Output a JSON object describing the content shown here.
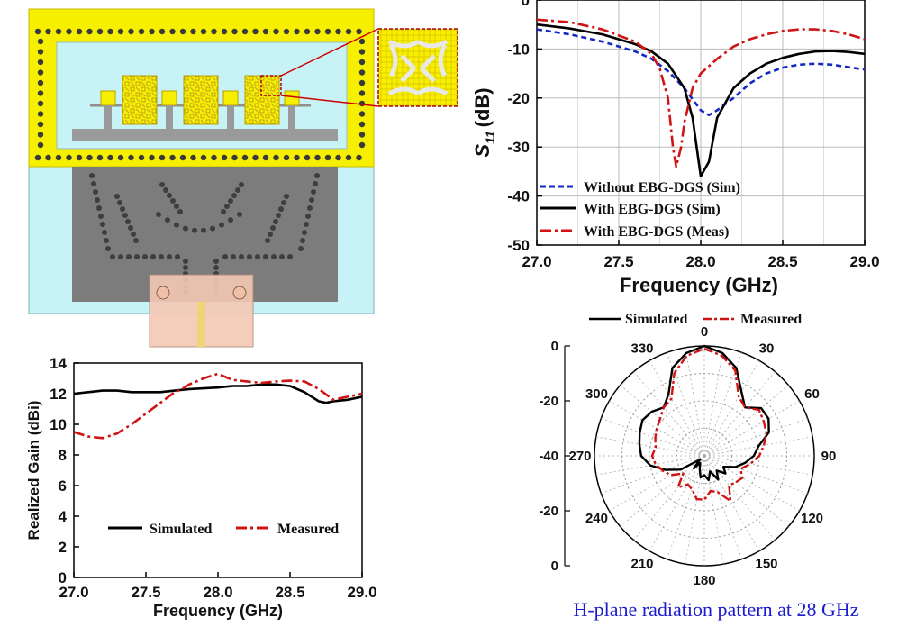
{
  "colors": {
    "sim_black": "#000000",
    "meas_red": "#d01414",
    "without_blue": "#1428c8",
    "board_cyan": "#c7f3f6",
    "ring_yellow": "#f6f000",
    "ground_gray": "#808080",
    "caption_blue": "#1a1ad0"
  },
  "antenna_diagram": {
    "description_icon": "antenna-layout-icon"
  },
  "chart_data": [
    {
      "id": "s11",
      "type": "line",
      "title": "",
      "xlabel": "Frequency (GHz)",
      "ylabel_main": "S",
      "ylabel_sub": "11",
      "ylabel_unit": "(dB)",
      "xlim": [
        27.0,
        29.0
      ],
      "ylim": [
        -50,
        0
      ],
      "xticks": [
        27.0,
        27.5,
        28.0,
        28.5,
        29.0
      ],
      "xtick_labels": [
        "27.0",
        "27.5",
        "28.0",
        "28.5",
        "29.0"
      ],
      "yticks": [
        0,
        -10,
        -20,
        -30,
        -40,
        -50
      ],
      "ytick_labels": [
        "0",
        "-10",
        "-20",
        "-30",
        "-40",
        "-50"
      ],
      "grid": true,
      "legend_position": "bottom-left",
      "series": [
        {
          "name": "Without EBG-DGS (Sim)",
          "style": "dashed",
          "color": "#1428c8",
          "x": [
            27.0,
            27.2,
            27.4,
            27.6,
            27.7,
            27.8,
            27.9,
            28.0,
            28.05,
            28.1,
            28.2,
            28.3,
            28.4,
            28.5,
            28.6,
            28.7,
            28.8,
            28.9,
            29.0
          ],
          "y": [
            -6,
            -7,
            -8.5,
            -10.5,
            -12,
            -14.5,
            -18,
            -22.5,
            -23.5,
            -22.5,
            -20,
            -17,
            -15,
            -13.8,
            -13.2,
            -13,
            -13.2,
            -13.7,
            -14.2
          ]
        },
        {
          "name": "With EBG-DGS (Sim)",
          "style": "solid",
          "color": "#000000",
          "x": [
            27.0,
            27.2,
            27.4,
            27.6,
            27.7,
            27.8,
            27.9,
            27.95,
            28.0,
            28.05,
            28.1,
            28.2,
            28.3,
            28.4,
            28.5,
            28.6,
            28.7,
            28.8,
            28.9,
            29.0
          ],
          "y": [
            -5,
            -5.8,
            -7,
            -9,
            -10.5,
            -13,
            -18,
            -24,
            -36,
            -33,
            -24,
            -18,
            -15,
            -13,
            -11.8,
            -11,
            -10.5,
            -10.4,
            -10.6,
            -11
          ]
        },
        {
          "name": "With EBG-DGS (Meas)",
          "style": "dashdot",
          "color": "#d01414",
          "x": [
            27.0,
            27.2,
            27.4,
            27.6,
            27.7,
            27.75,
            27.8,
            27.83,
            27.85,
            27.88,
            27.9,
            27.95,
            28.0,
            28.1,
            28.2,
            28.3,
            28.4,
            28.5,
            28.6,
            28.7,
            28.8,
            28.9,
            29.0
          ],
          "y": [
            -4,
            -4.5,
            -6,
            -8.5,
            -11,
            -14,
            -20,
            -30,
            -34,
            -30,
            -25,
            -18,
            -15,
            -12,
            -9.5,
            -8,
            -7,
            -6.3,
            -6,
            -6,
            -6.3,
            -7,
            -8
          ]
        }
      ]
    },
    {
      "id": "gain",
      "type": "line",
      "title": "",
      "xlabel": "Frequency (GHz)",
      "ylabel": "Realized Gain (dBi)",
      "xlim": [
        27.0,
        29.0
      ],
      "ylim": [
        0,
        14
      ],
      "xticks": [
        27.0,
        27.5,
        28.0,
        28.5,
        29.0
      ],
      "xtick_labels": [
        "27.0",
        "27.5",
        "28.0",
        "28.5",
        "29.0"
      ],
      "yticks": [
        0,
        2,
        4,
        6,
        8,
        10,
        12,
        14
      ],
      "ytick_labels": [
        "0",
        "2",
        "4",
        "6",
        "8",
        "10",
        "12",
        "14"
      ],
      "grid": false,
      "legend_position": "bottom-center",
      "series": [
        {
          "name": "Simulated",
          "style": "solid",
          "color": "#000000",
          "x": [
            27.0,
            27.1,
            27.2,
            27.3,
            27.4,
            27.5,
            27.6,
            27.7,
            27.8,
            27.9,
            28.0,
            28.1,
            28.2,
            28.3,
            28.4,
            28.5,
            28.6,
            28.7,
            28.75,
            28.8,
            28.9,
            29.0
          ],
          "y": [
            12.0,
            12.1,
            12.2,
            12.2,
            12.1,
            12.1,
            12.1,
            12.2,
            12.3,
            12.35,
            12.4,
            12.5,
            12.5,
            12.6,
            12.6,
            12.5,
            12.1,
            11.5,
            11.4,
            11.5,
            11.6,
            11.8
          ]
        },
        {
          "name": "Measured",
          "style": "dashdot",
          "color": "#d01414",
          "x": [
            27.0,
            27.1,
            27.2,
            27.3,
            27.4,
            27.5,
            27.6,
            27.7,
            27.75,
            27.8,
            27.9,
            28.0,
            28.05,
            28.1,
            28.2,
            28.3,
            28.4,
            28.5,
            28.6,
            28.7,
            28.8,
            28.9,
            29.0
          ],
          "y": [
            9.5,
            9.2,
            9.1,
            9.4,
            10.0,
            10.7,
            11.4,
            12.1,
            12.3,
            12.6,
            13.0,
            13.3,
            13.1,
            12.9,
            12.8,
            12.7,
            12.8,
            12.85,
            12.8,
            12.3,
            11.6,
            11.8,
            12.0
          ]
        }
      ]
    },
    {
      "id": "polar",
      "type": "polar",
      "title": "H-plane radiation pattern at 28 GHz",
      "rlim": [
        -40,
        0
      ],
      "r_labels": [
        "0",
        "-20",
        "-40",
        "-20",
        "0"
      ],
      "angle_labels": [
        "0",
        "30",
        "60",
        "90",
        "120",
        "150",
        "180",
        "210",
        "240",
        "270",
        "300",
        "330"
      ],
      "legend_position": "top",
      "series": [
        {
          "name": "Simulated",
          "style": "solid",
          "color": "#000000",
          "theta": [
            0,
            10,
            20,
            30,
            40,
            50,
            60,
            70,
            80,
            90,
            100,
            110,
            120,
            130,
            140,
            150,
            160,
            170,
            180,
            190,
            200,
            210,
            220,
            230,
            240,
            250,
            260,
            270,
            280,
            290,
            300,
            310,
            320,
            330,
            340,
            350,
            360
          ],
          "r": [
            0,
            -2,
            -6,
            -13,
            -17,
            -13,
            -13,
            -15,
            -20,
            -22,
            -25,
            -28,
            -32,
            -30,
            -33,
            -30,
            -34,
            -31,
            -33,
            -32,
            -35,
            -37,
            -34,
            -38,
            -30,
            -25,
            -20,
            -17,
            -16,
            -15,
            -14,
            -15,
            -17,
            -14,
            -6,
            -2,
            0
          ]
        },
        {
          "name": "Measured",
          "style": "dashdot",
          "color": "#d01414",
          "theta": [
            0,
            10,
            20,
            30,
            40,
            50,
            60,
            70,
            80,
            90,
            100,
            110,
            120,
            130,
            140,
            150,
            160,
            170,
            180,
            190,
            200,
            210,
            220,
            230,
            240,
            250,
            260,
            270,
            280,
            290,
            300,
            310,
            320,
            330,
            340,
            350,
            360
          ],
          "r": [
            -1,
            -3,
            -7,
            -15,
            -17,
            -14,
            -15,
            -16,
            -18,
            -20,
            -23,
            -26,
            -24,
            -25,
            -26,
            -21,
            -26,
            -27,
            -24,
            -24,
            -27,
            -28,
            -25,
            -30,
            -26,
            -24,
            -22,
            -21,
            -22,
            -21,
            -20,
            -19,
            -17,
            -16,
            -8,
            -3,
            -1
          ]
        }
      ]
    }
  ]
}
